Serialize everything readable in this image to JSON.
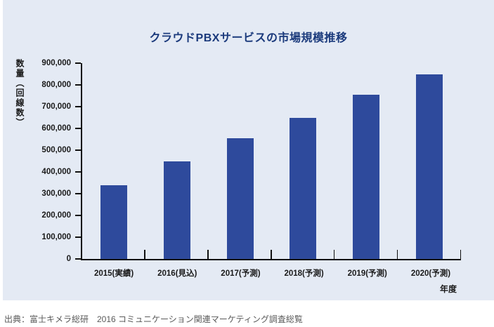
{
  "colors": {
    "panel_bg": "#e4eaf4",
    "title_text": "#1b3a7c",
    "axis": "#111111",
    "bar": "#2e4a9c",
    "source_text": "#595959"
  },
  "chart_data": {
    "type": "bar",
    "title": "クラウドPBXサービスの市場規模推移",
    "y_axis_label": "数量（回線数）",
    "x_axis_label": "年度",
    "categories": [
      "2015(実績)",
      "2016(見込)",
      "2017(予測)",
      "2018(予測)",
      "2019(予測)",
      "2020(予測)"
    ],
    "values": [
      340000,
      450000,
      555000,
      650000,
      755000,
      850000
    ],
    "ylim": [
      0,
      900000
    ],
    "y_tick_step": 100000,
    "y_tick_labels": [
      "0",
      "100,000",
      "200,000",
      "300,000",
      "400,000",
      "500,000",
      "600,000",
      "700,000",
      "800,000",
      "900,000"
    ],
    "grid": false,
    "legend": "none",
    "bar_color": "#2e4a9c"
  },
  "source": "出典：富士キメラ総研　2016 コミュニケーション関連マーケティング調査総覧"
}
